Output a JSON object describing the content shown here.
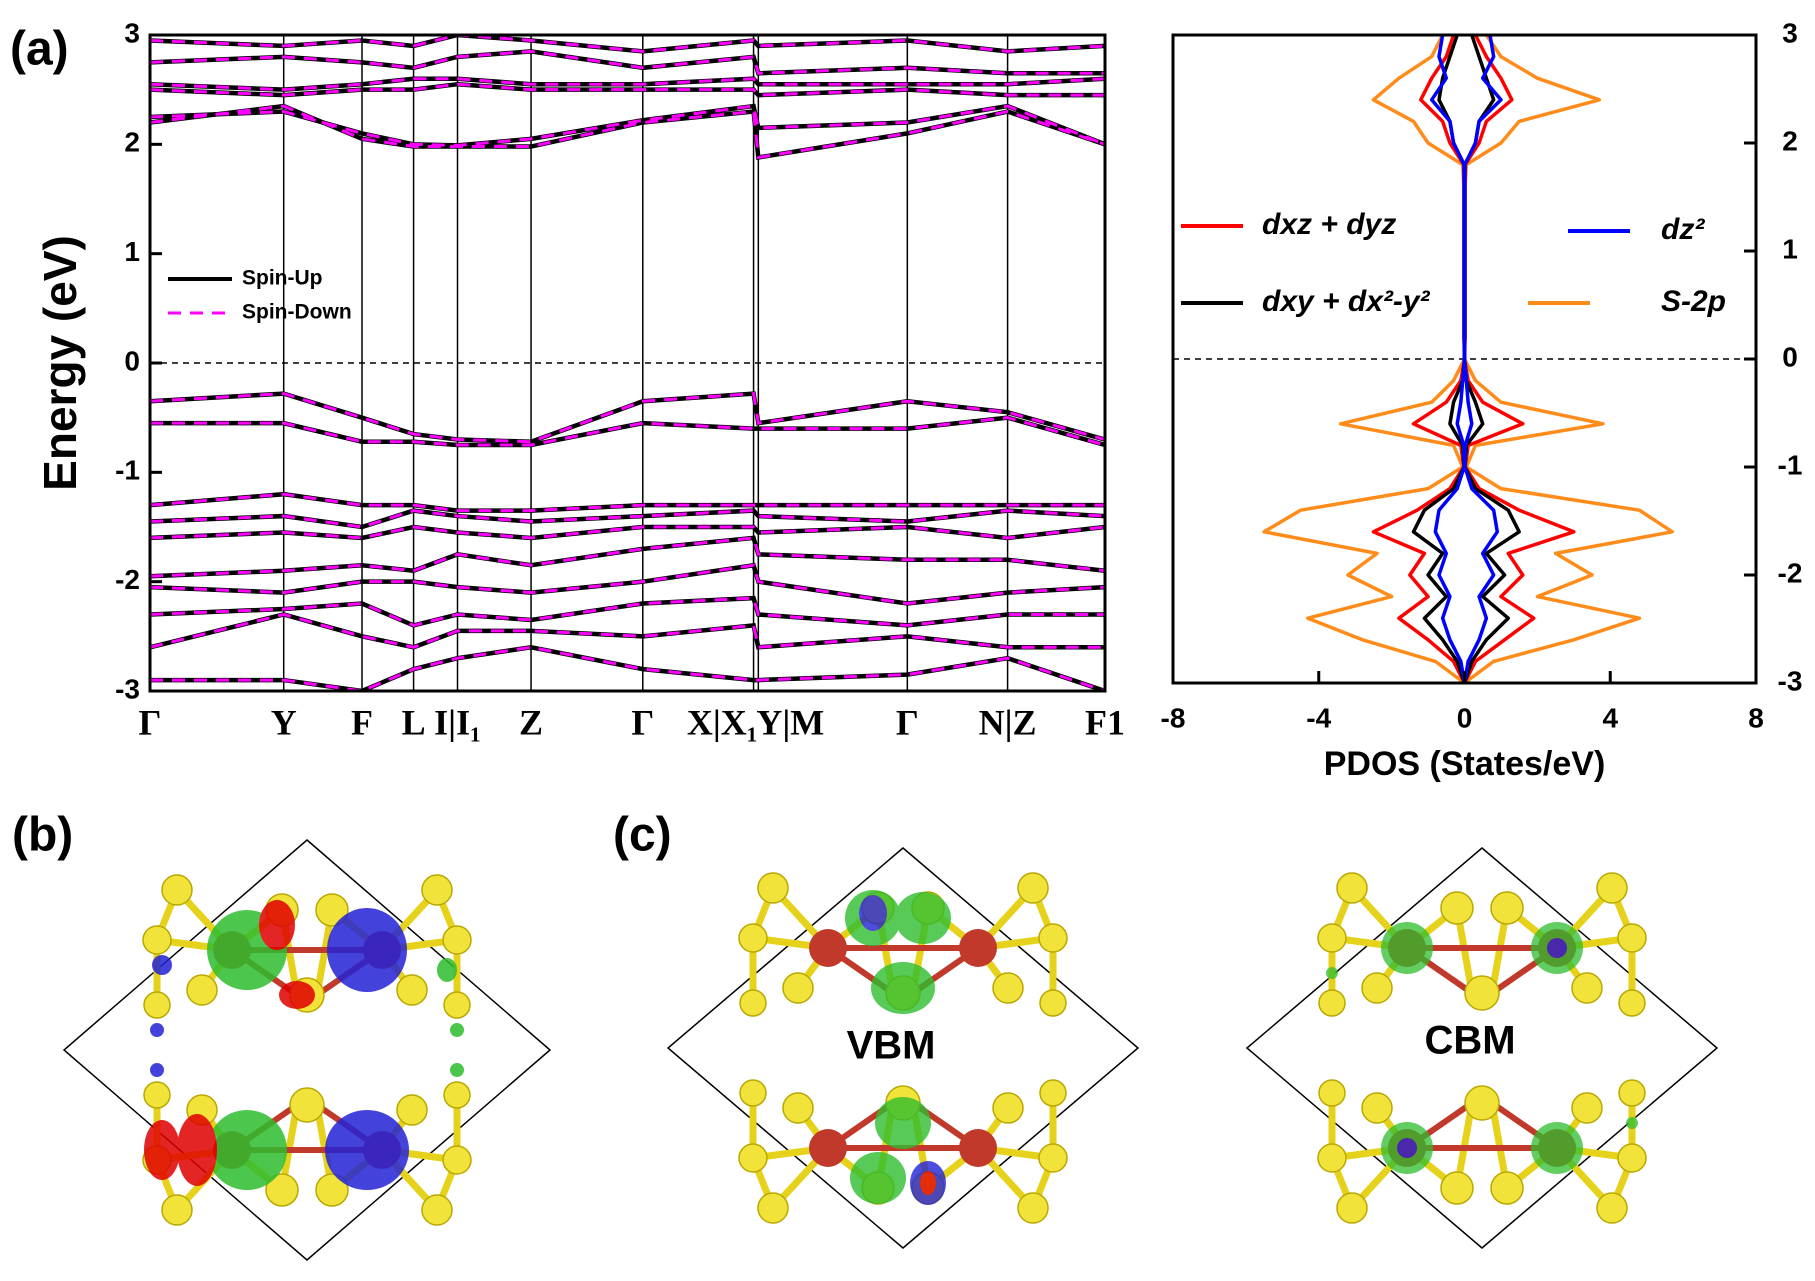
{
  "labels": [
    "(a)",
    "(b)",
    "(c)"
  ],
  "states": [
    "VBM",
    "CBM"
  ],
  "chart_data": [
    {
      "type": "line",
      "ylabel": "Energy (eV)",
      "xlim": [
        0,
        1
      ],
      "ylim": [
        -3,
        3
      ],
      "yticks": [
        -3,
        -2,
        -1,
        0,
        1,
        2,
        3
      ],
      "xticks": [
        {
          "value": 0,
          "label": "Γ"
        },
        {
          "value": 0.14,
          "label": "Y"
        },
        {
          "value": 0.222,
          "label": "F"
        },
        {
          "value": 0.276,
          "label": "L"
        },
        {
          "value": 0.322,
          "label": "I|I₁"
        },
        {
          "value": 0.399,
          "label": "Z"
        },
        {
          "value": 0.516,
          "label": "Γ"
        },
        {
          "value": 0.632,
          "label": "X|X₁"
        },
        {
          "value": 0.637,
          "label": "Y|M"
        },
        {
          "value": 0.793,
          "label": "Γ"
        },
        {
          "value": 0.898,
          "label": "N|Z"
        },
        {
          "value": 1,
          "label": "F1"
        }
      ],
      "x": [
        0,
        0.14,
        0.222,
        0.276,
        0.322,
        0.399,
        0.516,
        0.632,
        0.637,
        0.793,
        0.898,
        1
      ],
      "fermi_level": 0,
      "legend": "center left",
      "series": [
        {
          "name": "Spin-Up",
          "color": "#000000",
          "dash": false,
          "values": [
            [
              2.2,
              2.35,
              2.05,
              1.98,
              1.98,
              1.98,
              2.2,
              2.3,
              1.88,
              2.1,
              2.3,
              2.0
            ],
            [
              2.25,
              2.3,
              2.1,
              2.0,
              1.99,
              2.05,
              2.22,
              2.35,
              2.15,
              2.2,
              2.35,
              2.0
            ],
            [
              2.5,
              2.45,
              2.5,
              2.5,
              2.55,
              2.5,
              2.5,
              2.5,
              2.45,
              2.5,
              2.45,
              2.45
            ],
            [
              2.55,
              2.5,
              2.55,
              2.6,
              2.6,
              2.55,
              2.55,
              2.6,
              2.55,
              2.55,
              2.55,
              2.6
            ],
            [
              2.75,
              2.8,
              2.75,
              2.7,
              2.8,
              2.85,
              2.7,
              2.8,
              2.65,
              2.7,
              2.65,
              2.65
            ],
            [
              2.95,
              2.9,
              2.95,
              2.9,
              3.0,
              2.95,
              2.85,
              2.95,
              2.9,
              2.95,
              2.85,
              2.9
            ],
            [
              -0.35,
              -0.28,
              -0.5,
              -0.65,
              -0.7,
              -0.72,
              -0.35,
              -0.28,
              -0.55,
              -0.35,
              -0.45,
              -0.7
            ],
            [
              -0.55,
              -0.55,
              -0.72,
              -0.72,
              -0.75,
              -0.75,
              -0.55,
              -0.6,
              -0.6,
              -0.6,
              -0.5,
              -0.75
            ],
            [
              -1.3,
              -1.2,
              -1.3,
              -1.3,
              -1.35,
              -1.35,
              -1.3,
              -1.3,
              -1.3,
              -1.3,
              -1.3,
              -1.3
            ],
            [
              -1.45,
              -1.4,
              -1.5,
              -1.35,
              -1.4,
              -1.45,
              -1.4,
              -1.35,
              -1.4,
              -1.45,
              -1.35,
              -1.4
            ],
            [
              -1.6,
              -1.55,
              -1.6,
              -1.5,
              -1.55,
              -1.6,
              -1.5,
              -1.5,
              -1.55,
              -1.5,
              -1.6,
              -1.5
            ],
            [
              -1.95,
              -1.9,
              -1.85,
              -1.9,
              -1.75,
              -1.85,
              -1.7,
              -1.6,
              -1.75,
              -1.8,
              -1.8,
              -1.9
            ],
            [
              -2.05,
              -2.1,
              -2.0,
              -2.0,
              -2.05,
              -2.1,
              -2.0,
              -1.85,
              -2.0,
              -2.2,
              -2.1,
              -2.05
            ],
            [
              -2.3,
              -2.25,
              -2.2,
              -2.4,
              -2.3,
              -2.35,
              -2.2,
              -2.15,
              -2.3,
              -2.4,
              -2.3,
              -2.3
            ],
            [
              -2.6,
              -2.3,
              -2.5,
              -2.6,
              -2.45,
              -2.45,
              -2.5,
              -2.4,
              -2.6,
              -2.5,
              -2.6,
              -2.6
            ],
            [
              -2.9,
              -2.9,
              -3.0,
              -2.8,
              -2.7,
              -2.6,
              -2.8,
              -2.9,
              -2.9,
              -2.85,
              -2.7,
              -3.0
            ]
          ]
        },
        {
          "name": "Spin-Down",
          "color": "#ff00ff",
          "dash": true,
          "values": [
            [
              2.2,
              2.35,
              2.05,
              1.98,
              1.98,
              1.98,
              2.2,
              2.3,
              1.88,
              2.1,
              2.3,
              2.0
            ],
            [
              2.25,
              2.3,
              2.1,
              2.0,
              1.99,
              2.05,
              2.22,
              2.35,
              2.15,
              2.2,
              2.35,
              2.0
            ],
            [
              2.5,
              2.45,
              2.5,
              2.5,
              2.55,
              2.5,
              2.5,
              2.5,
              2.45,
              2.5,
              2.45,
              2.45
            ],
            [
              2.55,
              2.5,
              2.55,
              2.6,
              2.6,
              2.55,
              2.55,
              2.6,
              2.55,
              2.55,
              2.55,
              2.6
            ],
            [
              2.75,
              2.8,
              2.75,
              2.7,
              2.8,
              2.85,
              2.7,
              2.8,
              2.65,
              2.7,
              2.65,
              2.65
            ],
            [
              2.95,
              2.9,
              2.95,
              2.9,
              3.0,
              2.95,
              2.85,
              2.95,
              2.9,
              2.95,
              2.85,
              2.9
            ],
            [
              -0.35,
              -0.28,
              -0.5,
              -0.65,
              -0.7,
              -0.72,
              -0.35,
              -0.28,
              -0.55,
              -0.35,
              -0.45,
              -0.7
            ],
            [
              -0.55,
              -0.55,
              -0.72,
              -0.72,
              -0.75,
              -0.75,
              -0.55,
              -0.6,
              -0.6,
              -0.6,
              -0.5,
              -0.75
            ],
            [
              -1.3,
              -1.2,
              -1.3,
              -1.3,
              -1.35,
              -1.35,
              -1.3,
              -1.3,
              -1.3,
              -1.3,
              -1.3,
              -1.3
            ],
            [
              -1.45,
              -1.4,
              -1.5,
              -1.35,
              -1.4,
              -1.45,
              -1.4,
              -1.35,
              -1.4,
              -1.45,
              -1.35,
              -1.4
            ],
            [
              -1.6,
              -1.55,
              -1.6,
              -1.5,
              -1.55,
              -1.6,
              -1.5,
              -1.5,
              -1.55,
              -1.5,
              -1.6,
              -1.5
            ],
            [
              -1.95,
              -1.9,
              -1.85,
              -1.9,
              -1.75,
              -1.85,
              -1.7,
              -1.6,
              -1.75,
              -1.8,
              -1.8,
              -1.9
            ],
            [
              -2.05,
              -2.1,
              -2.0,
              -2.0,
              -2.05,
              -2.1,
              -2.0,
              -1.85,
              -2.0,
              -2.2,
              -2.1,
              -2.05
            ],
            [
              -2.3,
              -2.25,
              -2.2,
              -2.4,
              -2.3,
              -2.35,
              -2.2,
              -2.15,
              -2.3,
              -2.4,
              -2.3,
              -2.3
            ],
            [
              -2.6,
              -2.3,
              -2.5,
              -2.6,
              -2.45,
              -2.45,
              -2.5,
              -2.4,
              -2.6,
              -2.5,
              -2.6,
              -2.6
            ],
            [
              -2.9,
              -2.9,
              -3.0,
              -2.8,
              -2.7,
              -2.6,
              -2.8,
              -2.9,
              -2.9,
              -2.85,
              -2.7,
              -3.0
            ]
          ]
        }
      ]
    },
    {
      "type": "line",
      "orientation": "horizontal",
      "xlabel": "PDOS (States/eV)",
      "xlim": [
        -8,
        8
      ],
      "xticks": [
        -8,
        -4,
        0,
        4,
        8
      ],
      "ylim": [
        -3,
        3
      ],
      "yticks": [
        -3,
        -2,
        -1,
        0,
        1,
        2,
        3
      ],
      "fermi_level": 0,
      "energy": [
        3.0,
        2.8,
        2.6,
        2.4,
        2.2,
        2.0,
        1.8,
        1.6,
        1.4,
        1.2,
        1.0,
        0.8,
        0.6,
        0.4,
        0.2,
        0.0,
        -0.2,
        -0.4,
        -0.6,
        -0.8,
        -1.0,
        -1.2,
        -1.4,
        -1.6,
        -1.8,
        -2.0,
        -2.2,
        -2.4,
        -2.6,
        -2.8,
        -3.0
      ],
      "series": [
        {
          "name": "dxz + dyz",
          "color": "#ff0000",
          "up": [
            0.3,
            0.6,
            1.0,
            1.3,
            0.6,
            0.4,
            0.02,
            0.01,
            0.01,
            0.01,
            0.01,
            0.01,
            0.01,
            0.01,
            0.01,
            0,
            0.1,
            0.5,
            1.6,
            0.1,
            0.02,
            0.4,
            1.5,
            3.0,
            1.2,
            1.6,
            1.0,
            1.9,
            1.1,
            0.3,
            0
          ],
          "down": [
            -0.3,
            -0.5,
            -0.9,
            -1.2,
            -0.6,
            -0.4,
            -0.02,
            -0.01,
            -0.01,
            -0.01,
            -0.01,
            -0.01,
            -0.01,
            -0.01,
            -0.01,
            0,
            -0.1,
            -0.5,
            -1.4,
            -0.1,
            -0.02,
            -0.4,
            -1.3,
            -2.5,
            -1.1,
            -1.5,
            -1.0,
            -1.8,
            -1.0,
            -0.3,
            0
          ]
        },
        {
          "name": "dz²",
          "color": "#0000ff",
          "up": [
            0.7,
            0.8,
            0.5,
            1.0,
            0.4,
            0.3,
            0.01,
            0.01,
            0.01,
            0.01,
            0.01,
            0.01,
            0.01,
            0.01,
            0.01,
            0,
            0.05,
            0.1,
            0.2,
            0.02,
            0.01,
            0.2,
            0.8,
            0.9,
            0.5,
            0.8,
            0.4,
            0.6,
            0.4,
            0.1,
            0
          ],
          "down": [
            -0.6,
            -0.7,
            -0.5,
            -0.9,
            -0.4,
            -0.3,
            -0.01,
            -0.01,
            -0.01,
            -0.01,
            -0.01,
            -0.01,
            -0.01,
            -0.01,
            -0.01,
            0,
            -0.05,
            -0.1,
            -0.2,
            -0.02,
            -0.01,
            -0.2,
            -0.7,
            -0.8,
            -0.5,
            -0.7,
            -0.4,
            -0.6,
            -0.4,
            -0.1,
            0
          ]
        },
        {
          "name": "dxy + dx²-y²",
          "color": "#000000",
          "up": [
            0.2,
            0.4,
            0.6,
            0.8,
            0.4,
            0.3,
            0.01,
            0.01,
            0.01,
            0.01,
            0.01,
            0.01,
            0.01,
            0.01,
            0.01,
            0,
            0.05,
            0.3,
            0.5,
            0.05,
            0.01,
            0.3,
            1.2,
            1.5,
            0.6,
            1.1,
            0.5,
            1.2,
            0.6,
            0.2,
            0
          ],
          "down": [
            -0.2,
            -0.4,
            -0.6,
            -0.7,
            -0.4,
            -0.3,
            -0.01,
            -0.01,
            -0.01,
            -0.01,
            -0.01,
            -0.01,
            -0.01,
            -0.01,
            -0.01,
            0,
            -0.05,
            -0.3,
            -0.4,
            -0.05,
            -0.01,
            -0.3,
            -1.1,
            -1.4,
            -0.6,
            -1.0,
            -0.5,
            -1.1,
            -0.6,
            -0.2,
            0
          ]
        },
        {
          "name": "S-2p",
          "color": "#ff8c1a",
          "up": [
            0.6,
            1.0,
            2.0,
            3.7,
            1.5,
            1.0,
            0.05,
            0.02,
            0.02,
            0.02,
            0.02,
            0.02,
            0.02,
            0.02,
            0.02,
            0,
            0.3,
            1.0,
            3.8,
            0.3,
            0.05,
            1.0,
            4.8,
            5.7,
            2.5,
            3.5,
            2.0,
            4.8,
            3.0,
            0.8,
            0
          ],
          "down": [
            -0.6,
            -0.9,
            -1.8,
            -2.5,
            -1.4,
            -1.0,
            -0.05,
            -0.02,
            -0.02,
            -0.02,
            -0.02,
            -0.02,
            -0.02,
            -0.02,
            -0.02,
            0,
            -0.3,
            -0.9,
            -3.4,
            -0.3,
            -0.05,
            -1.0,
            -4.5,
            -5.5,
            -2.4,
            -3.2,
            -2.0,
            -4.3,
            -2.8,
            -0.8,
            0
          ]
        }
      ]
    }
  ]
}
